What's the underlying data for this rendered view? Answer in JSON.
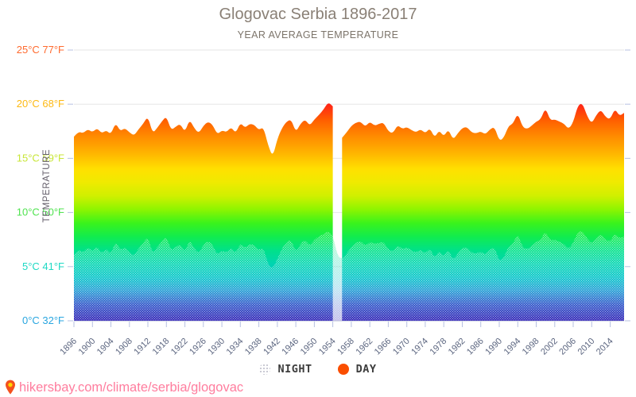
{
  "page": {
    "title": "Glogovac Serbia 1896-2017",
    "subtitle": "YEAR AVERAGE TEMPERATURE",
    "footer": {
      "url_text": "hikersbay.com/climate/serbia/glogovac"
    }
  },
  "legend": {
    "night_label": "NIGHT",
    "day_label": "DAY",
    "night_color": "#c7c7d2",
    "day_color": "#fa4e00"
  },
  "colors": {
    "title": "#8a8076",
    "subtitle": "#7c746a",
    "grid": "#e6e6e6",
    "baseline": "#d9dde9",
    "axis_tick": "#b7c1e2",
    "x_label": "#5c6680",
    "y_title": "#66606c",
    "footer_link": "#ff7d9e"
  },
  "chart_data": {
    "type": "area",
    "title": "Glogovac Serbia 1896-2017",
    "subtitle": "YEAR AVERAGE TEMPERATURE",
    "ylabel": "TEMPERATURE",
    "ylim": [
      0,
      25
    ],
    "grid": true,
    "legend_position": "bottom",
    "y_ticks": [
      {
        "t": 25,
        "c": "25°C",
        "f": "77°F",
        "color": "#ff6a2e"
      },
      {
        "t": 20,
        "c": "20°C",
        "f": "68°F",
        "color": "#fdb913"
      },
      {
        "t": 15,
        "c": "15°C",
        "f": "59°F",
        "color": "#c8e637"
      },
      {
        "t": 10,
        "c": "10°C",
        "f": "50°F",
        "color": "#4fe34f"
      },
      {
        "t": 5,
        "c": "5°C",
        "f": "41°F",
        "color": "#1ed9c4"
      },
      {
        "t": 0,
        "c": "0°C",
        "f": "32°F",
        "color": "#2aa6e0"
      }
    ],
    "x_tick_every": 4,
    "x_tick_labels": [
      "1896",
      "1900",
      "1904",
      "1908",
      "1912",
      "1918",
      "1922",
      "1926",
      "1930",
      "1934",
      "1938",
      "1942",
      "1946",
      "1950",
      "1954",
      "1958",
      "1962",
      "1966",
      "1970",
      "1974",
      "1978",
      "1982",
      "1986",
      "1990",
      "1994",
      "1998",
      "2002",
      "2006",
      "2010",
      "2014"
    ],
    "years": [
      1896,
      1897,
      1898,
      1899,
      1900,
      1901,
      1902,
      1903,
      1904,
      1905,
      1906,
      1907,
      1908,
      1909,
      1910,
      1911,
      1912,
      1915,
      1916,
      1917,
      1918,
      1919,
      1920,
      1921,
      1922,
      1923,
      1924,
      1925,
      1926,
      1927,
      1928,
      1929,
      1930,
      1931,
      1932,
      1933,
      1934,
      1935,
      1936,
      1937,
      1938,
      1939,
      1940,
      1941,
      1942,
      1943,
      1944,
      1945,
      1946,
      1947,
      1948,
      1949,
      1950,
      1951,
      1952,
      1953,
      1954,
      1955,
      1956,
      1957,
      1958,
      1959,
      1960,
      1961,
      1962,
      1963,
      1964,
      1965,
      1966,
      1967,
      1968,
      1969,
      1970,
      1971,
      1972,
      1973,
      1974,
      1975,
      1976,
      1977,
      1978,
      1979,
      1980,
      1981,
      1982,
      1983,
      1984,
      1985,
      1986,
      1987,
      1988,
      1989,
      1990,
      1991,
      1992,
      1993,
      1994,
      1995,
      1996,
      1997,
      1998,
      1999,
      2000,
      2001,
      2002,
      2003,
      2004,
      2005,
      2006,
      2007,
      2008,
      2009,
      2010,
      2011,
      2012,
      2013,
      2014,
      2015,
      2016,
      2017
    ],
    "series": [
      {
        "name": "DAY",
        "values": [
          17.0,
          17.5,
          17.3,
          17.7,
          17.4,
          17.8,
          17.3,
          17.6,
          17.2,
          18.3,
          17.5,
          17.8,
          17.4,
          17.1,
          17.7,
          18.2,
          18.9,
          17.3,
          17.8,
          18.4,
          18.9,
          17.6,
          17.9,
          18.2,
          17.4,
          18.6,
          17.8,
          17.3,
          18.0,
          18.4,
          18.1,
          17.2,
          17.6,
          17.4,
          17.9,
          17.3,
          18.3,
          17.8,
          18.2,
          18.1,
          17.6,
          17.9,
          16.2,
          15.1,
          16.8,
          17.8,
          18.4,
          18.6,
          17.4,
          18.2,
          18.6,
          18.0,
          18.6,
          19.0,
          19.5,
          20.2,
          19.8,
          null,
          16.9,
          17.4,
          18.0,
          18.3,
          18.4,
          17.9,
          18.4,
          18.0,
          18.2,
          18.3,
          17.5,
          17.3,
          18.1,
          17.7,
          17.9,
          17.6,
          17.4,
          17.7,
          17.3,
          17.8,
          16.9,
          17.6,
          17.0,
          17.7,
          16.7,
          17.3,
          17.8,
          17.9,
          17.4,
          17.3,
          17.5,
          17.2,
          17.7,
          17.9,
          16.6,
          16.9,
          18.0,
          18.2,
          19.2,
          17.9,
          17.7,
          18.0,
          18.4,
          18.6,
          19.7,
          18.5,
          18.6,
          18.4,
          18.2,
          17.7,
          18.3,
          19.9,
          20.1,
          18.9,
          18.2,
          19.0,
          19.5,
          18.8,
          18.6,
          19.6,
          18.9,
          19.2
        ]
      },
      {
        "name": "NIGHT",
        "values": [
          6.1,
          6.6,
          6.3,
          6.8,
          6.4,
          6.9,
          6.2,
          6.7,
          6.1,
          7.4,
          6.5,
          6.8,
          6.3,
          6.0,
          6.7,
          7.2,
          7.8,
          6.2,
          6.8,
          7.3,
          7.8,
          6.5,
          6.8,
          7.1,
          6.3,
          7.5,
          6.7,
          6.2,
          7.0,
          7.4,
          7.0,
          6.1,
          6.5,
          6.3,
          6.8,
          6.2,
          7.2,
          6.7,
          7.1,
          7.0,
          6.5,
          6.8,
          5.2,
          4.8,
          5.7,
          6.7,
          7.3,
          7.5,
          6.3,
          7.1,
          7.5,
          6.9,
          7.5,
          7.8,
          8.0,
          8.3,
          7.9,
          6.0,
          5.7,
          6.2,
          6.8,
          7.2,
          7.4,
          6.9,
          7.3,
          7.1,
          7.2,
          7.3,
          6.6,
          6.4,
          7.0,
          6.6,
          6.8,
          6.5,
          6.3,
          6.6,
          6.2,
          6.7,
          5.8,
          6.5,
          5.9,
          6.6,
          5.6,
          6.2,
          6.7,
          6.8,
          6.3,
          6.2,
          6.4,
          6.1,
          6.6,
          6.8,
          5.5,
          5.8,
          6.9,
          7.1,
          8.1,
          6.8,
          6.6,
          6.9,
          7.3,
          7.5,
          8.3,
          7.4,
          7.5,
          7.3,
          7.1,
          6.6,
          7.2,
          8.2,
          8.3,
          7.6,
          7.1,
          7.7,
          8.0,
          7.5,
          7.3,
          8.1,
          7.6,
          7.8
        ]
      }
    ],
    "gradient_stops": [
      [
        21,
        "#ff1a55"
      ],
      [
        20,
        "#ff2417"
      ],
      [
        18.5,
        "#ff5f00"
      ],
      [
        17,
        "#ff8c00"
      ],
      [
        15.5,
        "#ffb400"
      ],
      [
        14,
        "#ffe000"
      ],
      [
        12.8,
        "#f0ea00"
      ],
      [
        11.5,
        "#cff000"
      ],
      [
        10.3,
        "#8ef500"
      ],
      [
        9,
        "#3af31c"
      ],
      [
        7.8,
        "#12ec4d"
      ],
      [
        6.5,
        "#00e189"
      ],
      [
        5.3,
        "#00d5b0"
      ],
      [
        4,
        "#00c3c8"
      ],
      [
        2.8,
        "#1e9bd4"
      ],
      [
        1.5,
        "#2b52c8"
      ],
      [
        0,
        "#2a1cb2"
      ]
    ]
  }
}
